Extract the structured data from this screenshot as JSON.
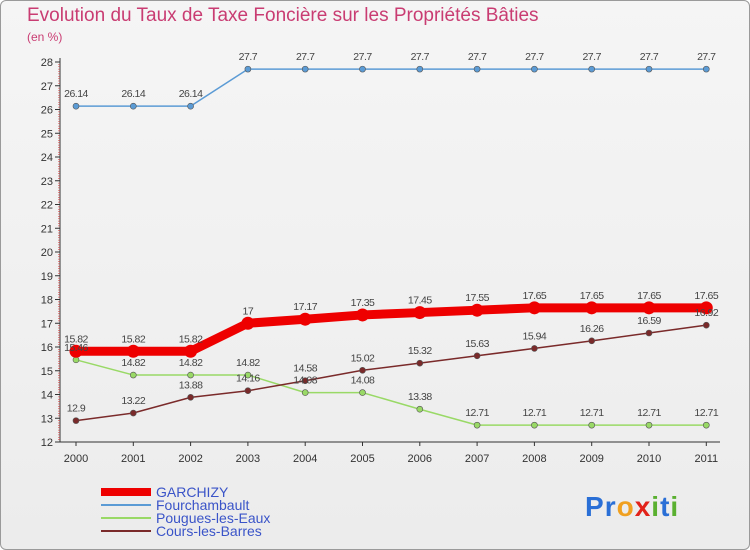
{
  "header": {
    "title": "Evolution du Taux de Taxe Foncière sur les Propriétés Bâties",
    "unit": "(en %)"
  },
  "logo": {
    "text": "Proxiti",
    "letter_colors": [
      "#2a6fd6",
      "#2a6fd6",
      "#f0a020",
      "#e2231a",
      "#5ab030",
      "#2a6fd6",
      "#5ab030"
    ]
  },
  "chart_data": {
    "type": "line",
    "title": "Evolution du Taux de Taxe Foncière sur les Propriétés Bâties",
    "ylabel": "(en %)",
    "xlabel": "",
    "x": [
      "2000",
      "2001",
      "2002",
      "2003",
      "2004",
      "2005",
      "2006",
      "2007",
      "2008",
      "2009",
      "2010",
      "2011"
    ],
    "ylim": [
      12,
      28
    ],
    "yticks": [
      12,
      13,
      14,
      15,
      16,
      17,
      18,
      19,
      20,
      21,
      22,
      23,
      24,
      25,
      26,
      27,
      28
    ],
    "grid": false,
    "legend_position": "bottom-left",
    "series": [
      {
        "name": "GARCHIZY",
        "color": "#ee0000",
        "emphasis": true,
        "values": [
          15.82,
          15.82,
          15.82,
          17,
          17.17,
          17.35,
          17.45,
          17.55,
          17.65,
          17.65,
          17.65,
          17.65
        ],
        "labels": [
          "15.82",
          "15.82",
          "15.82",
          "17",
          "17.17",
          "17.35",
          "17.45",
          "17.55",
          "17.65",
          "17.65",
          "17.65",
          "17.65"
        ]
      },
      {
        "name": "Fourchambault",
        "color": "#5b9bd5",
        "values": [
          26.14,
          26.14,
          26.14,
          27.7,
          27.7,
          27.7,
          27.7,
          27.7,
          27.7,
          27.7,
          27.7,
          27.7
        ],
        "labels": [
          "26.14",
          "26.14",
          "26.14",
          "27.7",
          "27.7",
          "27.7",
          "27.7",
          "27.7",
          "27.7",
          "27.7",
          "27.7",
          "27.7"
        ]
      },
      {
        "name": "Pougues-les-Eaux",
        "color": "#99d966",
        "values": [
          15.46,
          14.82,
          14.82,
          14.82,
          14.08,
          14.08,
          13.38,
          12.71,
          12.71,
          12.71,
          12.71,
          12.71
        ],
        "labels": [
          "15.46",
          "14.82",
          "14.82",
          "14.82",
          "14.08",
          "14.08",
          "13.38",
          "12.71",
          "12.71",
          "12.71",
          "12.71",
          "12.71"
        ]
      },
      {
        "name": "Cours-les-Barres",
        "color": "#7a2a2a",
        "values": [
          12.9,
          13.22,
          13.88,
          14.16,
          14.58,
          15.02,
          15.32,
          15.63,
          15.94,
          16.26,
          16.59,
          16.92
        ],
        "labels": [
          "12.9",
          "13.22",
          "13.88",
          "14.16",
          "14.58",
          "15.02",
          "15.32",
          "15.63",
          "15.94",
          "16.26",
          "16.59",
          "16.92"
        ]
      }
    ]
  }
}
